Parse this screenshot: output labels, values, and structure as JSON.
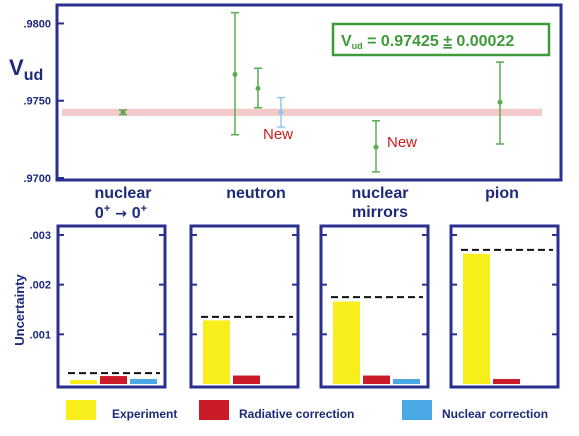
{
  "colors": {
    "frame": "#2b2f8f",
    "text": "#1d2a7a",
    "band": "#f3c9c9",
    "point": "#5aab52",
    "new_point": "#8fc8ea",
    "new_text": "#cc1b1b",
    "experiment": "#f7ee1c",
    "radiative": "#cc1b28",
    "nuclear": "#4aa8e4",
    "box_border": "#3e9a3a",
    "box_text": "#3e9a3a"
  },
  "chart_data": [
    {
      "type": "scatter",
      "ylabel_main": "V",
      "ylabel_sub": "ud",
      "ylim": [
        0.97,
        0.981
      ],
      "yticks": [
        0.97,
        0.975,
        0.98
      ],
      "ytick_labels": [
        ".9700",
        ".9750",
        ".9800"
      ],
      "band": [
        0.97415,
        0.97435
      ],
      "annotation": {
        "prefix": "V",
        "sub": "ud",
        "text": " = 0.97425 ",
        "pm": "±",
        "err": " 0.00022"
      },
      "categories": [
        {
          "id": "nuclear",
          "lines": [
            "nuclear",
            "0⁺ → 0⁺"
          ]
        },
        {
          "id": "neutron",
          "lines": [
            "neutron"
          ]
        },
        {
          "id": "mirrors",
          "lines": [
            "nuclear",
            "mirrors"
          ]
        },
        {
          "id": "pion",
          "lines": [
            "pion"
          ]
        }
      ],
      "points": [
        {
          "category": "nuclear",
          "offset": 0,
          "value": 0.97425,
          "low": 0.9741,
          "high": 0.9744,
          "new": false
        },
        {
          "category": "neutron",
          "offset": -0.23,
          "value": 0.9767,
          "low": 0.9728,
          "high": 0.9807,
          "new": false
        },
        {
          "category": "neutron",
          "offset": 0,
          "value": 0.9758,
          "low": 0.97455,
          "high": 0.9771,
          "new": false
        },
        {
          "category": "neutron",
          "offset": 0.23,
          "value": 0.97425,
          "low": 0.9733,
          "high": 0.9752,
          "new": true
        },
        {
          "category": "mirrors",
          "offset": 0,
          "value": 0.972,
          "low": 0.9704,
          "high": 0.9737,
          "new": false
        },
        {
          "category": "pion",
          "offset": 0,
          "value": 0.9749,
          "low": 0.9722,
          "high": 0.9775,
          "new": false
        }
      ],
      "new_labels": [
        {
          "text": "New",
          "category": "neutron"
        },
        {
          "text": "New",
          "category": "mirrors"
        }
      ]
    },
    {
      "type": "bar",
      "ylabel": "Uncertainty",
      "ylim": [
        0,
        0.0031
      ],
      "yticks": [
        0.001,
        0.002,
        0.003
      ],
      "ytick_labels": [
        ".001",
        ".002",
        ".003"
      ],
      "series": [
        {
          "name": "Experiment",
          "color": "#f7ee1c"
        },
        {
          "name": "Radiative correction",
          "color": "#cc1b28"
        },
        {
          "name": "Nuclear correction",
          "color": "#4aa8e4"
        }
      ],
      "panels": [
        {
          "category": "nuclear",
          "values": [
            8e-05,
            0.00016,
            0.0001
          ],
          "total": 0.00022
        },
        {
          "category": "neutron",
          "values": [
            0.00128,
            0.00017,
            null
          ],
          "total": 0.00135
        },
        {
          "category": "mirrors",
          "values": [
            0.00166,
            0.00017,
            0.0001
          ],
          "total": 0.00175
        },
        {
          "category": "pion",
          "values": [
            0.00262,
            0.0001,
            null
          ],
          "total": 0.0027
        }
      ]
    }
  ]
}
